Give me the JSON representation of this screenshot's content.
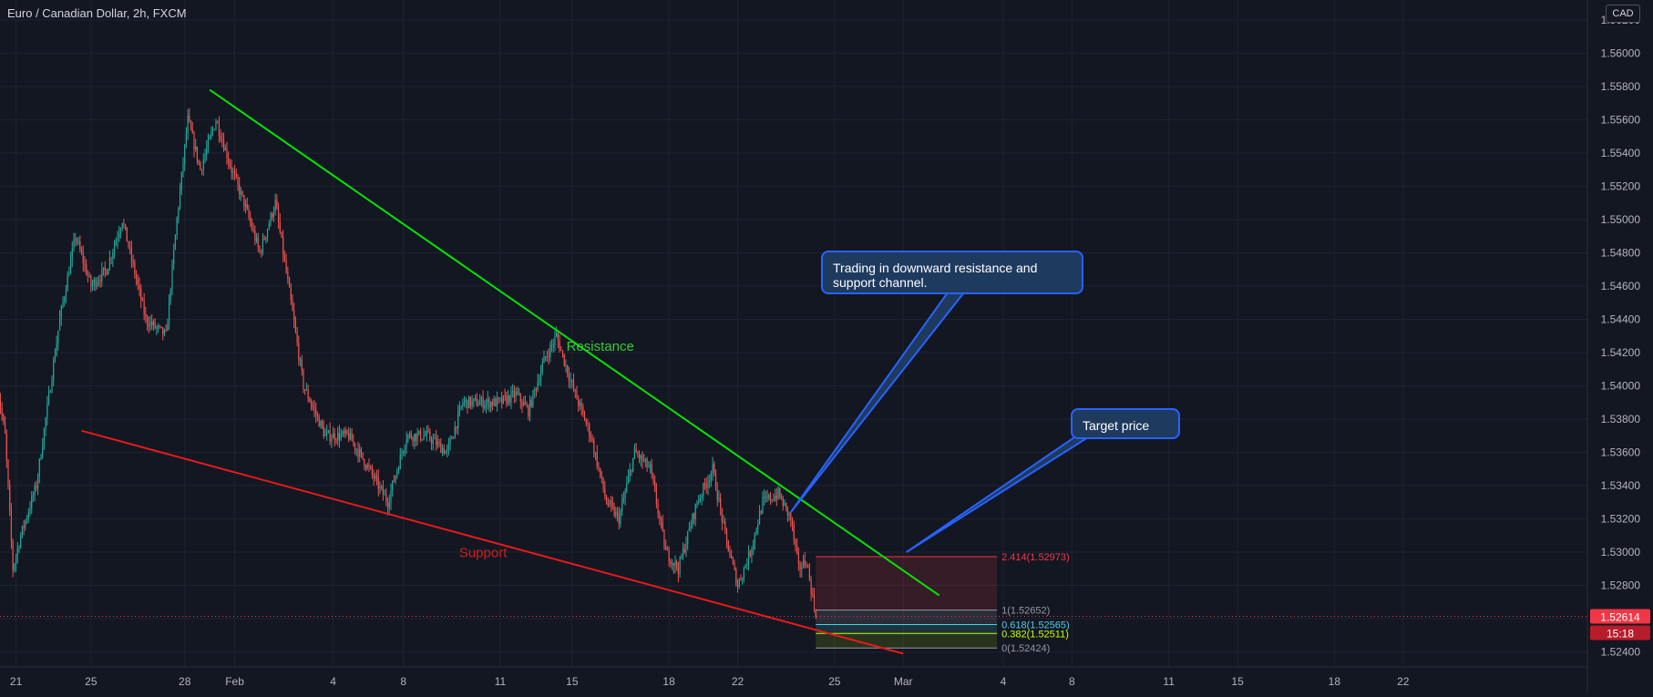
{
  "chart_data": {
    "type": "candlestick",
    "title": "Euro / Canadian Dollar, 2h, FXCM",
    "currency": "CAD",
    "ylim": [
      1.5231,
      1.5632
    ],
    "y_ticks": [
      "1.52400",
      "1.52600",
      "1.52800",
      "1.53000",
      "1.53200",
      "1.53400",
      "1.53600",
      "1.53800",
      "1.54000",
      "1.54200",
      "1.54400",
      "1.54600",
      "1.54800",
      "1.55000",
      "1.55200",
      "1.55400",
      "1.55600",
      "1.55800",
      "1.56000",
      "1.56200"
    ],
    "x_ticks": [
      {
        "label": "21",
        "idx": 12
      },
      {
        "label": "25",
        "idx": 60
      },
      {
        "label": "28",
        "idx": 120
      },
      {
        "label": "Feb",
        "idx": 152
      },
      {
        "label": "4",
        "idx": 215
      },
      {
        "label": "8",
        "idx": 260
      },
      {
        "label": "11",
        "idx": 322
      },
      {
        "label": "15",
        "idx": 368
      },
      {
        "label": "18",
        "idx": 430
      },
      {
        "label": "22",
        "idx": 474
      },
      {
        "label": "25",
        "idx": 536
      },
      {
        "label": "Mar",
        "idx": 580
      },
      {
        "label": "4",
        "idx": 644
      },
      {
        "label": "8",
        "idx": 688
      },
      {
        "label": "11",
        "idx": 750
      },
      {
        "label": "15",
        "idx": 794
      },
      {
        "label": "18",
        "idx": 856
      },
      {
        "label": "22",
        "idx": 900
      }
    ],
    "price_path": [
      {
        "idx": 0,
        "price": 1.54
      },
      {
        "idx": 5,
        "price": 1.537
      },
      {
        "idx": 10,
        "price": 1.529
      },
      {
        "idx": 15,
        "price": 1.531
      },
      {
        "idx": 25,
        "price": 1.534
      },
      {
        "idx": 40,
        "price": 1.544
      },
      {
        "idx": 50,
        "price": 1.549
      },
      {
        "idx": 60,
        "price": 1.546
      },
      {
        "idx": 70,
        "price": 1.547
      },
      {
        "idx": 80,
        "price": 1.55
      },
      {
        "idx": 95,
        "price": 1.544
      },
      {
        "idx": 108,
        "price": 1.543
      },
      {
        "idx": 115,
        "price": 1.55
      },
      {
        "idx": 122,
        "price": 1.556
      },
      {
        "idx": 130,
        "price": 1.553
      },
      {
        "idx": 140,
        "price": 1.556
      },
      {
        "idx": 150,
        "price": 1.553
      },
      {
        "idx": 158,
        "price": 1.551
      },
      {
        "idx": 168,
        "price": 1.548
      },
      {
        "idx": 178,
        "price": 1.551
      },
      {
        "idx": 188,
        "price": 1.545
      },
      {
        "idx": 196,
        "price": 1.54
      },
      {
        "idx": 210,
        "price": 1.537
      },
      {
        "idx": 225,
        "price": 1.537
      },
      {
        "idx": 238,
        "price": 1.535
      },
      {
        "idx": 250,
        "price": 1.533
      },
      {
        "idx": 262,
        "price": 1.537
      },
      {
        "idx": 275,
        "price": 1.537
      },
      {
        "idx": 288,
        "price": 1.536
      },
      {
        "idx": 298,
        "price": 1.539
      },
      {
        "idx": 310,
        "price": 1.539
      },
      {
        "idx": 322,
        "price": 1.539
      },
      {
        "idx": 332,
        "price": 1.5395
      },
      {
        "idx": 340,
        "price": 1.5385
      },
      {
        "idx": 350,
        "price": 1.5415
      },
      {
        "idx": 358,
        "price": 1.543
      },
      {
        "idx": 368,
        "price": 1.54
      },
      {
        "idx": 380,
        "price": 1.537
      },
      {
        "idx": 390,
        "price": 1.533
      },
      {
        "idx": 398,
        "price": 1.532
      },
      {
        "idx": 408,
        "price": 1.536
      },
      {
        "idx": 418,
        "price": 1.535
      },
      {
        "idx": 428,
        "price": 1.53
      },
      {
        "idx": 436,
        "price": 1.529
      },
      {
        "idx": 448,
        "price": 1.533
      },
      {
        "idx": 458,
        "price": 1.535
      },
      {
        "idx": 466,
        "price": 1.531
      },
      {
        "idx": 474,
        "price": 1.528
      },
      {
        "idx": 482,
        "price": 1.53
      },
      {
        "idx": 490,
        "price": 1.533
      },
      {
        "idx": 500,
        "price": 1.5335
      },
      {
        "idx": 508,
        "price": 1.532
      },
      {
        "idx": 513,
        "price": 1.529
      },
      {
        "idx": 518,
        "price": 1.5295
      },
      {
        "idx": 524,
        "price": 1.5261
      }
    ],
    "series": [
      {
        "name": "Resistance",
        "type": "trendline",
        "points": [
          {
            "idx": 136,
            "price": 1.5578
          },
          {
            "idx": 603,
            "price": 1.5274
          }
        ],
        "color": "#00e600"
      },
      {
        "name": "Support",
        "type": "trendline",
        "points": [
          {
            "idx": 54,
            "price": 1.5373
          },
          {
            "idx": 580,
            "price": 1.5239
          }
        ],
        "color": "#e51a1a"
      }
    ],
    "current_price": {
      "label": "1.52614",
      "value": 1.52614,
      "countdown": "15:18"
    },
    "fib_levels": [
      {
        "label": "2.414(1.52973)",
        "price": 1.52973,
        "color": "#f23645"
      },
      {
        "label": "1(1.52652)",
        "price": 1.52652,
        "color": "#9598a1"
      },
      {
        "label": "0.618(1.52565)",
        "price": 1.52565,
        "color": "#4dd0e1"
      },
      {
        "label": "0.382(1.52511)",
        "price": 1.52511,
        "color": "#c6ff00"
      },
      {
        "label": "0(1.52424)",
        "price": 1.52424,
        "color": "#9598a1"
      }
    ],
    "fib_range_idx": [
      524,
      640
    ],
    "annotations": [
      {
        "text": "Resistance",
        "idx": 386,
        "price": 1.5421,
        "color": "#33cc33"
      },
      {
        "text": "Support",
        "idx": 311,
        "price": 1.5297,
        "color": "#cc1f1f"
      }
    ],
    "callouts": [
      {
        "text": "Trading in downward resistance and support channel.",
        "anchor_idx": 508,
        "anchor_price": 1.5324
      },
      {
        "text": "Target price",
        "anchor_idx": 582,
        "anchor_price": 1.53
      }
    ],
    "colors": {
      "up": "#26a69a",
      "down": "#ef5350",
      "background": "#131722",
      "grid": "#1f2330",
      "axis_text": "#b2b5be"
    }
  }
}
